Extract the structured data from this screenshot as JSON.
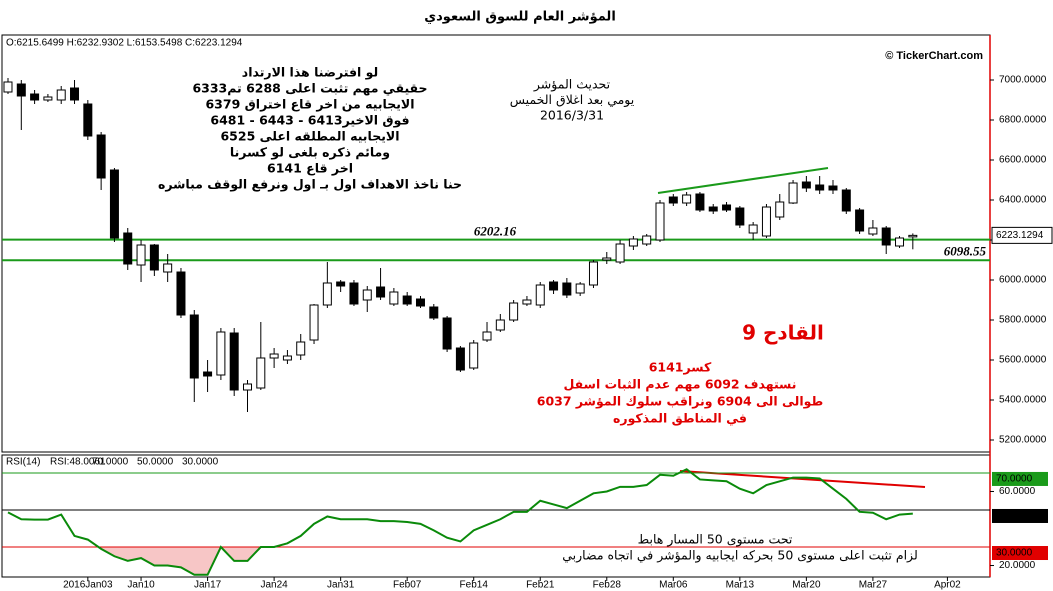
{
  "chart_data": [
    {
      "type": "candlestick",
      "title": "المؤشر العام للسوق السعودي",
      "ohlc_label": "O:6215.6499 H:6232.9302 L:6153.5498 C:6223.1294",
      "source": "© TickerChart.com",
      "open": [
        6940,
        6980,
        6930,
        6900,
        6900,
        6960,
        6880,
        6725,
        6550,
        6235,
        6075,
        6175,
        6040,
        6040,
        5825,
        5540,
        5525,
        5735,
        5450,
        5460,
        5610,
        5600,
        5625,
        5700,
        5875,
        5990,
        5985,
        5900,
        5965,
        5880,
        5920,
        5905,
        5865,
        5810,
        5660,
        5560,
        5700,
        5750,
        5800,
        5880,
        5875,
        5990,
        5985,
        5935,
        5975,
        6100,
        6090,
        6170,
        6180,
        6200,
        6415,
        6385,
        6430,
        6365,
        6375,
        6360,
        6235,
        6220,
        6315,
        6385,
        6490,
        6475,
        6470,
        6450,
        6350,
        6230,
        6260,
        6170,
        6215.6499
      ],
      "high": [
        7010,
        7000,
        6950,
        6930,
        6970,
        7000,
        6900,
        6740,
        6560,
        6260,
        6200,
        6180,
        6130,
        6060,
        5850,
        5600,
        5760,
        5760,
        5500,
        5790,
        5660,
        5650,
        5730,
        5880,
        6090,
        6000,
        6000,
        5970,
        6060,
        5960,
        5940,
        5920,
        5880,
        5820,
        5670,
        5700,
        5790,
        5830,
        5900,
        5920,
        5990,
        6000,
        6010,
        5990,
        6100,
        6140,
        6200,
        6220,
        6230,
        6400,
        6430,
        6440,
        6440,
        6380,
        6390,
        6370,
        6290,
        6380,
        6430,
        6500,
        6520,
        6520,
        6500,
        6460,
        6360,
        6300,
        6270,
        6220,
        6232.9302
      ],
      "low": [
        6930,
        6750,
        6880,
        6890,
        6880,
        6880,
        6700,
        6450,
        6190,
        6050,
        5990,
        6020,
        5990,
        5810,
        5390,
        5440,
        5500,
        5420,
        5340,
        5450,
        5560,
        5580,
        5600,
        5680,
        5860,
        5940,
        5870,
        5840,
        5900,
        5870,
        5870,
        5860,
        5800,
        5640,
        5540,
        5550,
        5690,
        5740,
        5790,
        5870,
        5860,
        5930,
        5910,
        5920,
        5960,
        6080,
        6080,
        6150,
        6170,
        6190,
        6370,
        6370,
        6340,
        6330,
        6340,
        6260,
        6200,
        6210,
        6300,
        6380,
        6440,
        6430,
        6430,
        6330,
        6230,
        6220,
        6130,
        6160,
        6153.5498
      ],
      "close": [
        6990,
        6920,
        6900,
        6915,
        6950,
        6900,
        6720,
        6510,
        6210,
        6080,
        6175,
        6050,
        6080,
        5825,
        5510,
        5520,
        5740,
        5450,
        5480,
        5610,
        5630,
        5620,
        5690,
        5875,
        5985,
        5970,
        5880,
        5950,
        5915,
        5940,
        5880,
        5870,
        5810,
        5655,
        5550,
        5685,
        5740,
        5800,
        5885,
        5900,
        5975,
        5950,
        5925,
        5980,
        6090,
        6110,
        6180,
        6205,
        6220,
        6385,
        6385,
        6425,
        6350,
        6345,
        6350,
        6275,
        6275,
        6365,
        6390,
        6485,
        6460,
        6450,
        6450,
        6345,
        6245,
        6260,
        6175,
        6210,
        6223.1294
      ],
      "ylim": [
        5140,
        7225
      ],
      "yticks": [
        {
          "value": 5200,
          "label": "5200.0000"
        },
        {
          "value": 5400,
          "label": "5400.0000"
        },
        {
          "value": 5600,
          "label": "5600.0000"
        },
        {
          "value": 5800,
          "label": "5800.0000"
        },
        {
          "value": 6000,
          "label": "6000.0000"
        },
        {
          "value": 6200,
          "label": "6200.0000"
        },
        {
          "value": 6400,
          "label": "6400.0000"
        },
        {
          "value": 6600,
          "label": "6600.0000"
        },
        {
          "value": 6800,
          "label": "6800.0000"
        },
        {
          "value": 7000,
          "label": "7000.0000"
        }
      ],
      "xlim": [
        -0.45,
        73.8
      ],
      "xticks": [
        {
          "value": 6,
          "label": "2016Jan03"
        },
        {
          "value": 10,
          "label": "Jan10"
        },
        {
          "value": 15,
          "label": "Jan17"
        },
        {
          "value": 20,
          "label": "Jan24"
        },
        {
          "value": 25,
          "label": "Jan31"
        },
        {
          "value": 30,
          "label": "Feb07"
        },
        {
          "value": 35,
          "label": "Feb14"
        },
        {
          "value": 40,
          "label": "Feb21"
        },
        {
          "value": 45,
          "label": "Feb28"
        },
        {
          "value": 50,
          "label": "Mar06"
        },
        {
          "value": 55,
          "label": "Mar13"
        },
        {
          "value": 60,
          "label": "Mar20"
        },
        {
          "value": 65,
          "label": "Mar27"
        },
        {
          "value": 70.6,
          "label": "Apr02"
        }
      ],
      "price_lines": [
        6202.16,
        6098.55
      ],
      "line_color": "#1a9a1a",
      "annotations": {
        "analysis": [
          "لو افترضنا هذا الارتداد",
          "حقيقي  مهم تثبت اعلى 6288 تم6333",
          "الايجابيه  من اخر قاع اختراق 6379",
          "فوق الاخير6413 - 6443 - 6481",
          "الايجابيه  المطلقه  اعلى  6525",
          "ومائم ذكره بلغى لو كسرنا",
          "اخر قاع 6141",
          "حنا ناخذ الاهداف اول بـ اول ونرفع الوقف مباشره"
        ],
        "update": [
          "تحديث المؤشر",
          "يومي بعد اغلاق الخميس",
          "2016/3/31"
        ],
        "signal": "القادح 9",
        "targets": [
          "كسر6141",
          "نستهدف  6092  مهم عدم الثبات  اسفل",
          "6037  طوالى  الى 6904 ونراقب  سلوك  المؤشر",
          "في المناطق المذكوره"
        ]
      }
    },
    {
      "type": "line",
      "title": "RSI(14)",
      "value_label": "RSI:48.0061",
      "series": [
        {
          "name": "RSI",
          "color": "#0a8a0a",
          "values": [
            48.7,
            45,
            44.8,
            44.8,
            47.5,
            36,
            34,
            29,
            25,
            22.5,
            24,
            20,
            20,
            19,
            15,
            15,
            30,
            22.5,
            22.5,
            30,
            30,
            32,
            36,
            42.5,
            46.5,
            45,
            45,
            45,
            44,
            44,
            43.5,
            42.5,
            39,
            35,
            33,
            39,
            42,
            45,
            49,
            49,
            55,
            53,
            51,
            55,
            59,
            60,
            62.5,
            62.5,
            63.5,
            69,
            68.5,
            72,
            66.5,
            66,
            65.5,
            61.5,
            59,
            63.5,
            65.5,
            67.5,
            67.5,
            67,
            61.5,
            56,
            49,
            48.5,
            45,
            47.5,
            48.0061
          ]
        }
      ],
      "ylim": [
        13.8,
        79.7
      ],
      "yticks": [
        {
          "value": 20,
          "label": "20.0000"
        },
        {
          "value": 60,
          "label": "60.0000"
        }
      ],
      "levels": [
        {
          "value": 70,
          "label": "70.0000",
          "color": "#1a9a1a"
        },
        {
          "value": 50,
          "label": "50.0000",
          "color": "#000000"
        },
        {
          "value": 30,
          "label": "30.0000",
          "color": "#e00000"
        }
      ],
      "fill_color": "#f7c6c6",
      "annotations": [
        "تحت  مستوى 50 المسار  هابط",
        "لزام  تثبت اعلى  مستوى 50 بحركه ايجابيه والمؤشر  في  اتجاه مضاربي"
      ]
    }
  ]
}
